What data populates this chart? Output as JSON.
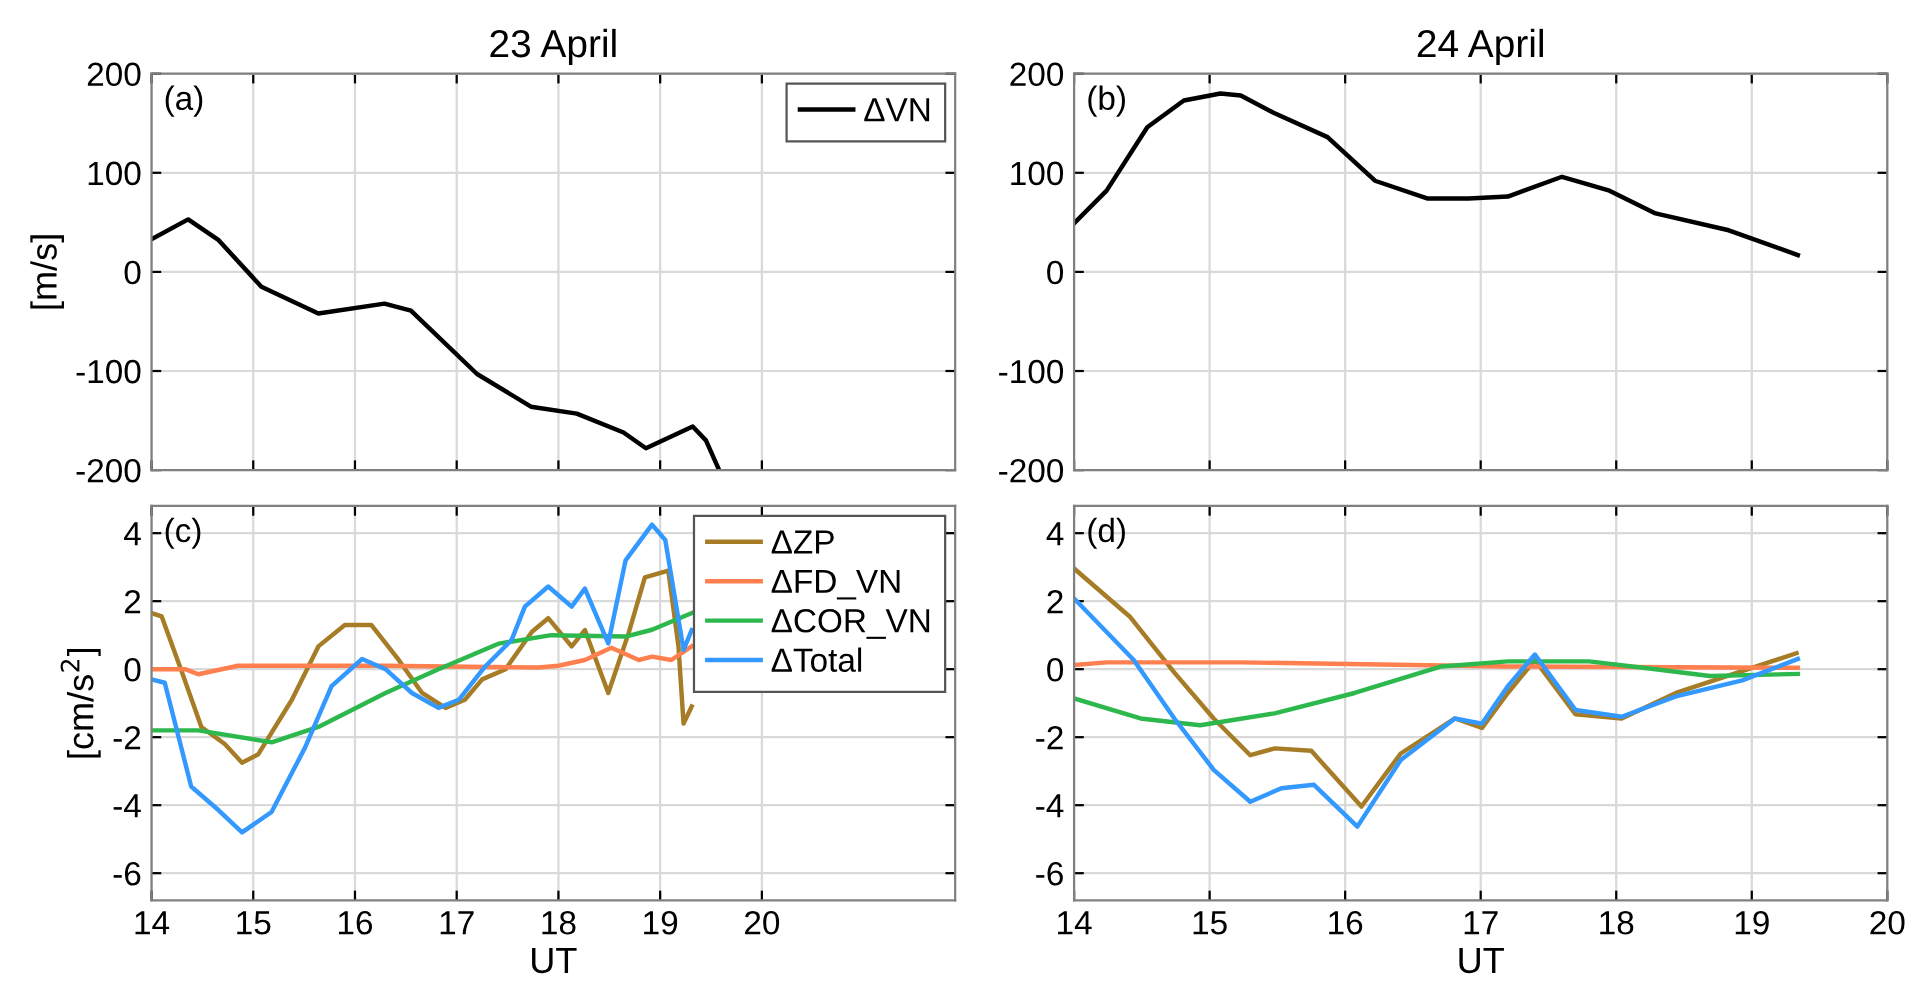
{
  "chart_data": [
    {
      "type": "line",
      "title": "23 April",
      "ylabel": "[m/s]",
      "xlim": [
        14,
        21.9
      ],
      "xticks": [
        14,
        15,
        16,
        17,
        18,
        19,
        20
      ],
      "ylim": [
        -200,
        200
      ],
      "yticks": [
        -200,
        -100,
        0,
        100,
        200
      ],
      "tick_labels": "y",
      "grid": true,
      "legend": "top right",
      "annotations": [
        "(a)"
      ],
      "series": [
        {
          "name": "ΔVN",
          "color": "#000000",
          "x": [
            14.0,
            14.36,
            14.66,
            15.08,
            15.64,
            16.29,
            16.55,
            17.2,
            17.73,
            18.18,
            18.64,
            18.86,
            19.32,
            19.45,
            19.58
          ],
          "values": [
            33,
            53,
            32,
            -15,
            -42,
            -32,
            -39,
            -103,
            -136,
            -143,
            -162,
            -178,
            -156,
            -170,
            -200
          ]
        }
      ]
    },
    {
      "type": "line",
      "title": "24 April",
      "xlim": [
        14,
        20
      ],
      "xticks": [
        14,
        15,
        16,
        17,
        18,
        19,
        20
      ],
      "ylim": [
        -200,
        200
      ],
      "yticks": [
        -200,
        -100,
        0,
        100,
        200
      ],
      "tick_labels": "y",
      "grid": true,
      "annotations": [
        "(b)"
      ],
      "series": [
        {
          "color": "#000000",
          "x": [
            14.0,
            14.24,
            14.54,
            14.81,
            15.08,
            15.23,
            15.48,
            15.87,
            16.22,
            16.61,
            16.91,
            17.2,
            17.6,
            17.95,
            18.29,
            18.83,
            19.34
          ],
          "values": [
            49,
            82,
            146,
            173,
            180,
            178,
            160,
            136,
            92,
            74,
            74,
            76,
            96,
            82,
            59,
            42,
            17
          ]
        }
      ]
    },
    {
      "type": "line",
      "xlabel": "UT",
      "ylabel": "[cm/s$^{2}$]",
      "xlim": [
        14,
        21.9
      ],
      "xticks": [
        14,
        15,
        16,
        17,
        18,
        19,
        20
      ],
      "ylim": [
        -6.8,
        4.8
      ],
      "yticks": [
        -6,
        -4,
        -2,
        0,
        2,
        4
      ],
      "grid": true,
      "legend": "top right",
      "annotations": [
        "(c)"
      ],
      "series": [
        {
          "name": "ΔZP",
          "color": "#a67c27",
          "x": [
            14.0,
            14.1,
            14.3,
            14.49,
            14.72,
            14.89,
            15.05,
            15.38,
            15.64,
            15.9,
            16.16,
            16.43,
            16.66,
            16.89,
            17.08,
            17.25,
            17.48,
            17.74,
            17.9,
            18.13,
            18.26,
            18.49,
            18.69,
            18.85,
            19.08,
            19.18,
            19.23,
            19.31
          ],
          "values": [
            1.65,
            1.55,
            -0.1,
            -1.7,
            -2.2,
            -2.75,
            -2.5,
            -0.9,
            0.67,
            1.3,
            1.3,
            0.27,
            -0.7,
            -1.14,
            -0.9,
            -0.3,
            0.0,
            1.1,
            1.5,
            0.67,
            1.15,
            -0.7,
            1.06,
            2.7,
            2.9,
            0.67,
            -1.6,
            -1.1
          ]
        },
        {
          "name": "ΔFD_VN",
          "color": "#ff7f4f",
          "x": [
            14.0,
            14.33,
            14.46,
            14.85,
            16.3,
            17.8,
            18.0,
            18.26,
            18.52,
            18.79,
            18.92,
            19.11,
            19.31
          ],
          "values": [
            0.0,
            0.0,
            -0.15,
            0.1,
            0.1,
            0.05,
            0.1,
            0.27,
            0.63,
            0.27,
            0.37,
            0.27,
            0.67
          ]
        },
        {
          "name": "ΔCOR_VN",
          "color": "#2db84d",
          "x": [
            14.0,
            14.46,
            15.18,
            15.64,
            16.3,
            16.82,
            17.41,
            17.93,
            18.66,
            18.92,
            19.31
          ],
          "values": [
            -1.8,
            -1.8,
            -2.15,
            -1.7,
            -0.7,
            0.0,
            0.75,
            1.0,
            0.96,
            1.16,
            1.65
          ]
        },
        {
          "name": "ΔTotal",
          "color": "#3399ff",
          "x": [
            14.0,
            14.13,
            14.39,
            14.66,
            14.89,
            15.18,
            15.51,
            15.77,
            16.07,
            16.3,
            16.56,
            16.82,
            17.02,
            17.28,
            17.54,
            17.67,
            17.9,
            18.13,
            18.26,
            18.49,
            18.66,
            18.92,
            19.05,
            19.23,
            19.31
          ],
          "values": [
            -0.3,
            -0.4,
            -3.45,
            -4.15,
            -4.8,
            -4.2,
            -2.3,
            -0.5,
            0.3,
            0.0,
            -0.7,
            -1.14,
            -0.9,
            0.08,
            0.86,
            1.84,
            2.43,
            1.84,
            2.37,
            0.76,
            3.2,
            4.25,
            3.8,
            0.57,
            1.15
          ]
        }
      ]
    },
    {
      "type": "line",
      "xlabel": "UT",
      "xlim": [
        14,
        20
      ],
      "xticks": [
        14,
        15,
        16,
        17,
        18,
        19,
        20
      ],
      "ylim": [
        -6.8,
        4.8
      ],
      "yticks": [
        -6,
        -4,
        -2,
        0,
        2,
        4
      ],
      "grid": true,
      "annotations": [
        "(d)"
      ],
      "series": [
        {
          "color": "#a67c27",
          "x": [
            14.0,
            14.41,
            14.74,
            15.03,
            15.3,
            15.48,
            15.75,
            16.12,
            16.41,
            16.81,
            17.01,
            17.2,
            17.4,
            17.7,
            18.04,
            18.44,
            19.33
          ],
          "values": [
            2.96,
            1.55,
            -0.1,
            -1.45,
            -2.53,
            -2.33,
            -2.4,
            -4.04,
            -2.48,
            -1.45,
            -1.73,
            -0.7,
            0.27,
            -1.33,
            -1.45,
            -0.7,
            0.47
          ]
        },
        {
          "color": "#ff7f4f",
          "x": [
            14.0,
            14.24,
            15.23,
            17.2,
            19.34
          ],
          "values": [
            0.12,
            0.2,
            0.2,
            0.08,
            0.04
          ]
        },
        {
          "color": "#2db84d",
          "x": [
            14.0,
            14.49,
            14.93,
            15.48,
            16.07,
            16.71,
            17.2,
            17.8,
            18.29,
            18.69,
            19.34
          ],
          "values": [
            -0.86,
            -1.45,
            -1.65,
            -1.3,
            -0.7,
            0.08,
            0.23,
            0.23,
            0.0,
            -0.2,
            -0.14
          ]
        },
        {
          "color": "#3399ff",
          "x": [
            14.0,
            14.44,
            14.74,
            15.03,
            15.3,
            15.53,
            15.77,
            16.09,
            16.41,
            16.81,
            17.01,
            17.2,
            17.4,
            17.7,
            18.04,
            18.44,
            18.93,
            19.34
          ],
          "values": [
            2.08,
            0.27,
            -1.45,
            -2.96,
            -3.9,
            -3.5,
            -3.4,
            -4.63,
            -2.67,
            -1.45,
            -1.6,
            -0.5,
            0.43,
            -1.2,
            -1.4,
            -0.8,
            -0.33,
            0.3
          ]
        }
      ]
    }
  ]
}
